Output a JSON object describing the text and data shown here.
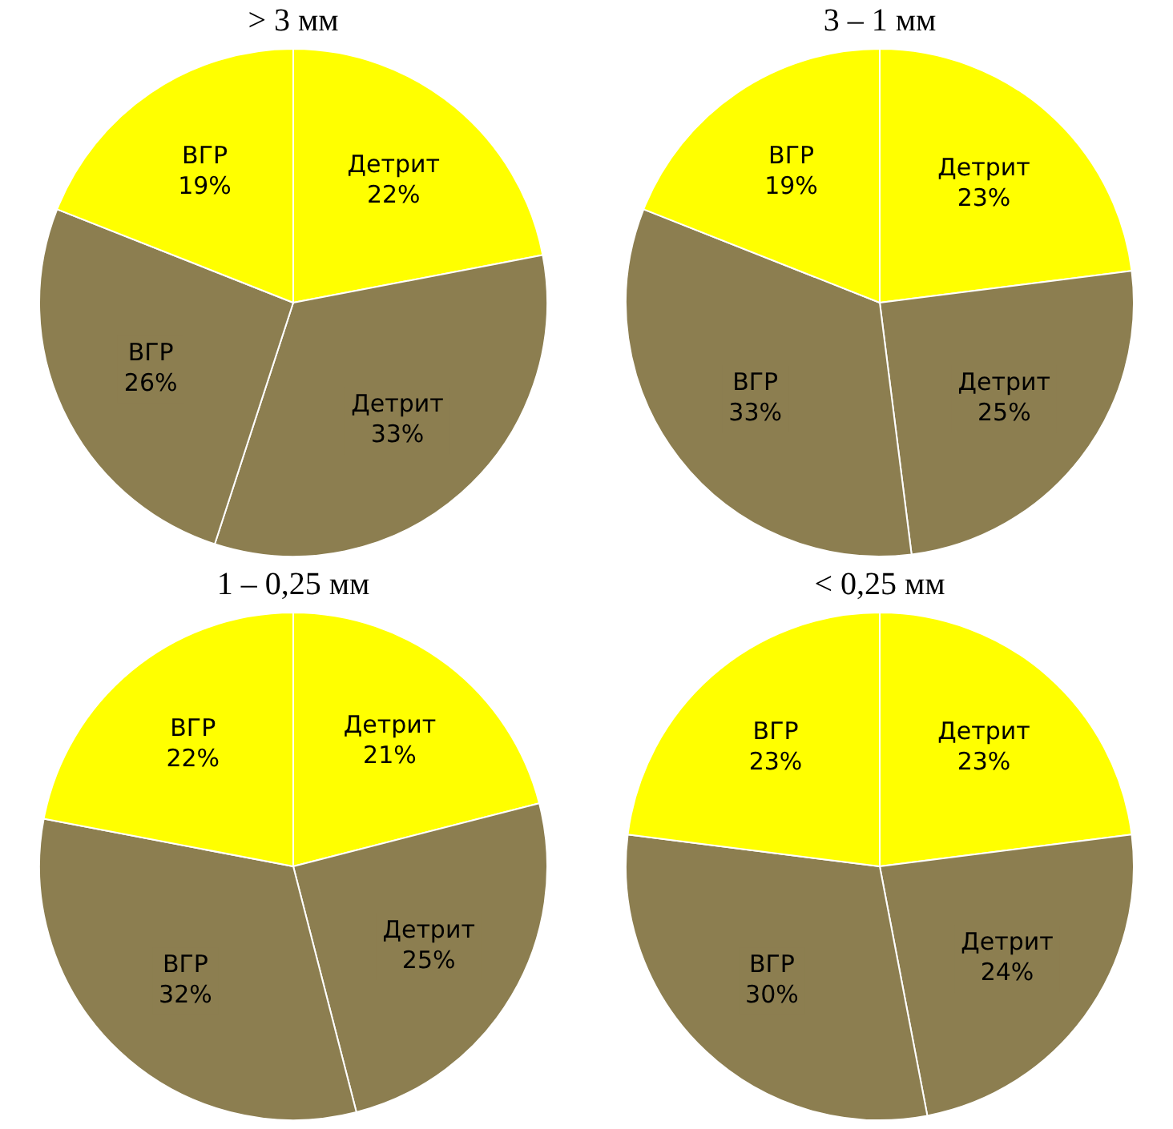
{
  "chart_data": [
    {
      "type": "pie",
      "title": "> 3 мм",
      "categories": [
        "Детрит",
        "Детрит",
        "ВГР",
        "ВГР"
      ],
      "values": [
        22,
        33,
        26,
        19
      ],
      "value_labels": [
        "22%",
        "33%",
        "26%",
        "19%"
      ],
      "colors": [
        "#ffff00",
        "#8c7e50",
        "#8c7e50",
        "#ffff00"
      ]
    },
    {
      "type": "pie",
      "title": "3 – 1 мм",
      "categories": [
        "Детрит",
        "Детрит",
        "ВГР",
        "ВГР"
      ],
      "values": [
        23,
        25,
        33,
        19
      ],
      "value_labels": [
        "23%",
        "25%",
        "33%",
        "19%"
      ],
      "colors": [
        "#ffff00",
        "#8c7e50",
        "#8c7e50",
        "#ffff00"
      ]
    },
    {
      "type": "pie",
      "title": "1 – 0,25 мм",
      "categories": [
        "Детрит",
        "Детрит",
        "ВГР",
        "ВГР"
      ],
      "values": [
        21,
        25,
        32,
        22
      ],
      "value_labels": [
        "21%",
        "25%",
        "32%",
        "22%"
      ],
      "colors": [
        "#ffff00",
        "#8c7e50",
        "#8c7e50",
        "#ffff00"
      ]
    },
    {
      "type": "pie",
      "title": "< 0,25 мм",
      "categories": [
        "Детрит",
        "Детрит",
        "ВГР",
        "ВГР"
      ],
      "values": [
        23,
        24,
        30,
        23
      ],
      "value_labels": [
        "23%",
        "24%",
        "30%",
        "23%"
      ],
      "colors": [
        "#ffff00",
        "#8c7e50",
        "#8c7e50",
        "#ffff00"
      ]
    }
  ]
}
